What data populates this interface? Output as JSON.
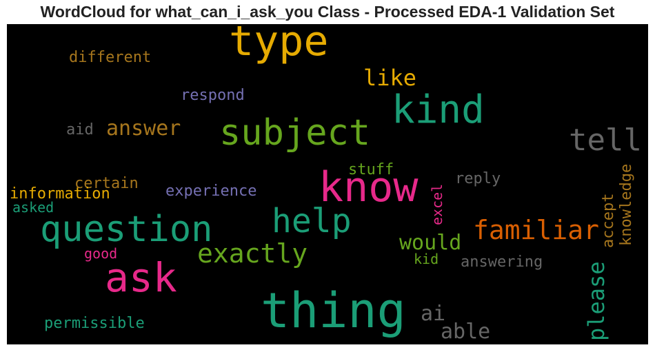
{
  "title": "WordCloud for what_can_i_ask_you Class - Processed EDA-1 Validation Set",
  "chart_data": {
    "type": "wordcloud",
    "background": "#000000",
    "words": [
      {
        "text": "type",
        "size": 60,
        "color": "#e6ab02"
      },
      {
        "text": "thing",
        "size": 70,
        "color": "#1b9e77"
      },
      {
        "text": "know",
        "size": 60,
        "color": "#e7298a"
      },
      {
        "text": "kind",
        "size": 56,
        "color": "#1b9e77"
      },
      {
        "text": "ask",
        "size": 58,
        "color": "#e7298a"
      },
      {
        "text": "question",
        "size": 52,
        "color": "#1b9e77"
      },
      {
        "text": "subject",
        "size": 52,
        "color": "#66a61e"
      },
      {
        "text": "help",
        "size": 48,
        "color": "#1b9e77"
      },
      {
        "text": "tell",
        "size": 44,
        "color": "#666666"
      },
      {
        "text": "familiar",
        "size": 38,
        "color": "#d95f02"
      },
      {
        "text": "exactly",
        "size": 38,
        "color": "#66a61e"
      },
      {
        "text": "please",
        "size": 32,
        "color": "#1b9e77"
      },
      {
        "text": "like",
        "size": 32,
        "color": "#e6ab02"
      },
      {
        "text": "able",
        "size": 30,
        "color": "#666666"
      },
      {
        "text": "answer",
        "size": 30,
        "color": "#a6761d"
      },
      {
        "text": "would",
        "size": 30,
        "color": "#66a61e"
      },
      {
        "text": "ai",
        "size": 30,
        "color": "#666666"
      },
      {
        "text": "different",
        "size": 22,
        "color": "#a6761d"
      },
      {
        "text": "respond",
        "size": 22,
        "color": "#7570b3"
      },
      {
        "text": "aid",
        "size": 22,
        "color": "#666666"
      },
      {
        "text": "stuff",
        "size": 22,
        "color": "#66a61e"
      },
      {
        "text": "certain",
        "size": 22,
        "color": "#a6761d"
      },
      {
        "text": "information",
        "size": 22,
        "color": "#e6ab02"
      },
      {
        "text": "experience",
        "size": 22,
        "color": "#7570b3"
      },
      {
        "text": "asked",
        "size": 20,
        "color": "#1b9e77"
      },
      {
        "text": "reply",
        "size": 22,
        "color": "#666666"
      },
      {
        "text": "excel",
        "size": 20,
        "color": "#e7298a"
      },
      {
        "text": "accept",
        "size": 22,
        "color": "#a6761d"
      },
      {
        "text": "knowledge",
        "size": 22,
        "color": "#a6761d"
      },
      {
        "text": "good",
        "size": 20,
        "color": "#e7298a"
      },
      {
        "text": "kid",
        "size": 20,
        "color": "#66a61e"
      },
      {
        "text": "answering",
        "size": 22,
        "color": "#666666"
      },
      {
        "text": "permissible",
        "size": 22,
        "color": "#1b9e77"
      }
    ]
  }
}
